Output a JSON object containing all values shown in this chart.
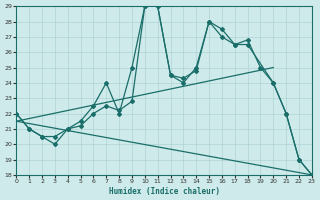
{
  "xlabel": "Humidex (Indice chaleur)",
  "bg_color": "#ceeaea",
  "line_color": "#1a6e6a",
  "grid_color": "#afd4d4",
  "xlim": [
    0,
    23
  ],
  "ylim": [
    18,
    29
  ],
  "xticks": [
    0,
    1,
    2,
    3,
    4,
    5,
    6,
    7,
    8,
    9,
    10,
    11,
    12,
    13,
    14,
    15,
    16,
    17,
    18,
    19,
    20,
    21,
    22,
    23
  ],
  "yticks": [
    18,
    19,
    20,
    21,
    22,
    23,
    24,
    25,
    26,
    27,
    28,
    29
  ],
  "straight_line1": {
    "x": [
      0,
      23
    ],
    "y": [
      21.5,
      18
    ]
  },
  "straight_line2": {
    "x": [
      0,
      20
    ],
    "y": [
      21.5,
      25
    ]
  },
  "zigzag1": {
    "x": [
      0,
      1,
      2,
      3,
      4,
      5,
      6,
      7,
      8,
      9,
      10,
      11,
      12,
      13,
      14,
      15,
      16,
      17,
      18,
      19,
      20,
      21,
      22,
      23
    ],
    "y": [
      22,
      21,
      20.5,
      20.5,
      21,
      21.2,
      22,
      22.5,
      22.2,
      22.8,
      29,
      29,
      24.5,
      24.3,
      24.8,
      28,
      27.5,
      26.5,
      26.8,
      25,
      24,
      22,
      19,
      18
    ]
  },
  "zigzag2": {
    "x": [
      0,
      1,
      2,
      3,
      4,
      5,
      6,
      7,
      8,
      9,
      10,
      11,
      12,
      13,
      14,
      15,
      16,
      17,
      18,
      20,
      21,
      22,
      23
    ],
    "y": [
      22,
      21,
      20.5,
      20,
      21,
      21.5,
      22.5,
      24,
      22,
      25,
      29,
      29,
      24.5,
      24,
      25,
      28,
      27,
      26.5,
      26.5,
      24,
      22,
      19,
      18
    ]
  }
}
